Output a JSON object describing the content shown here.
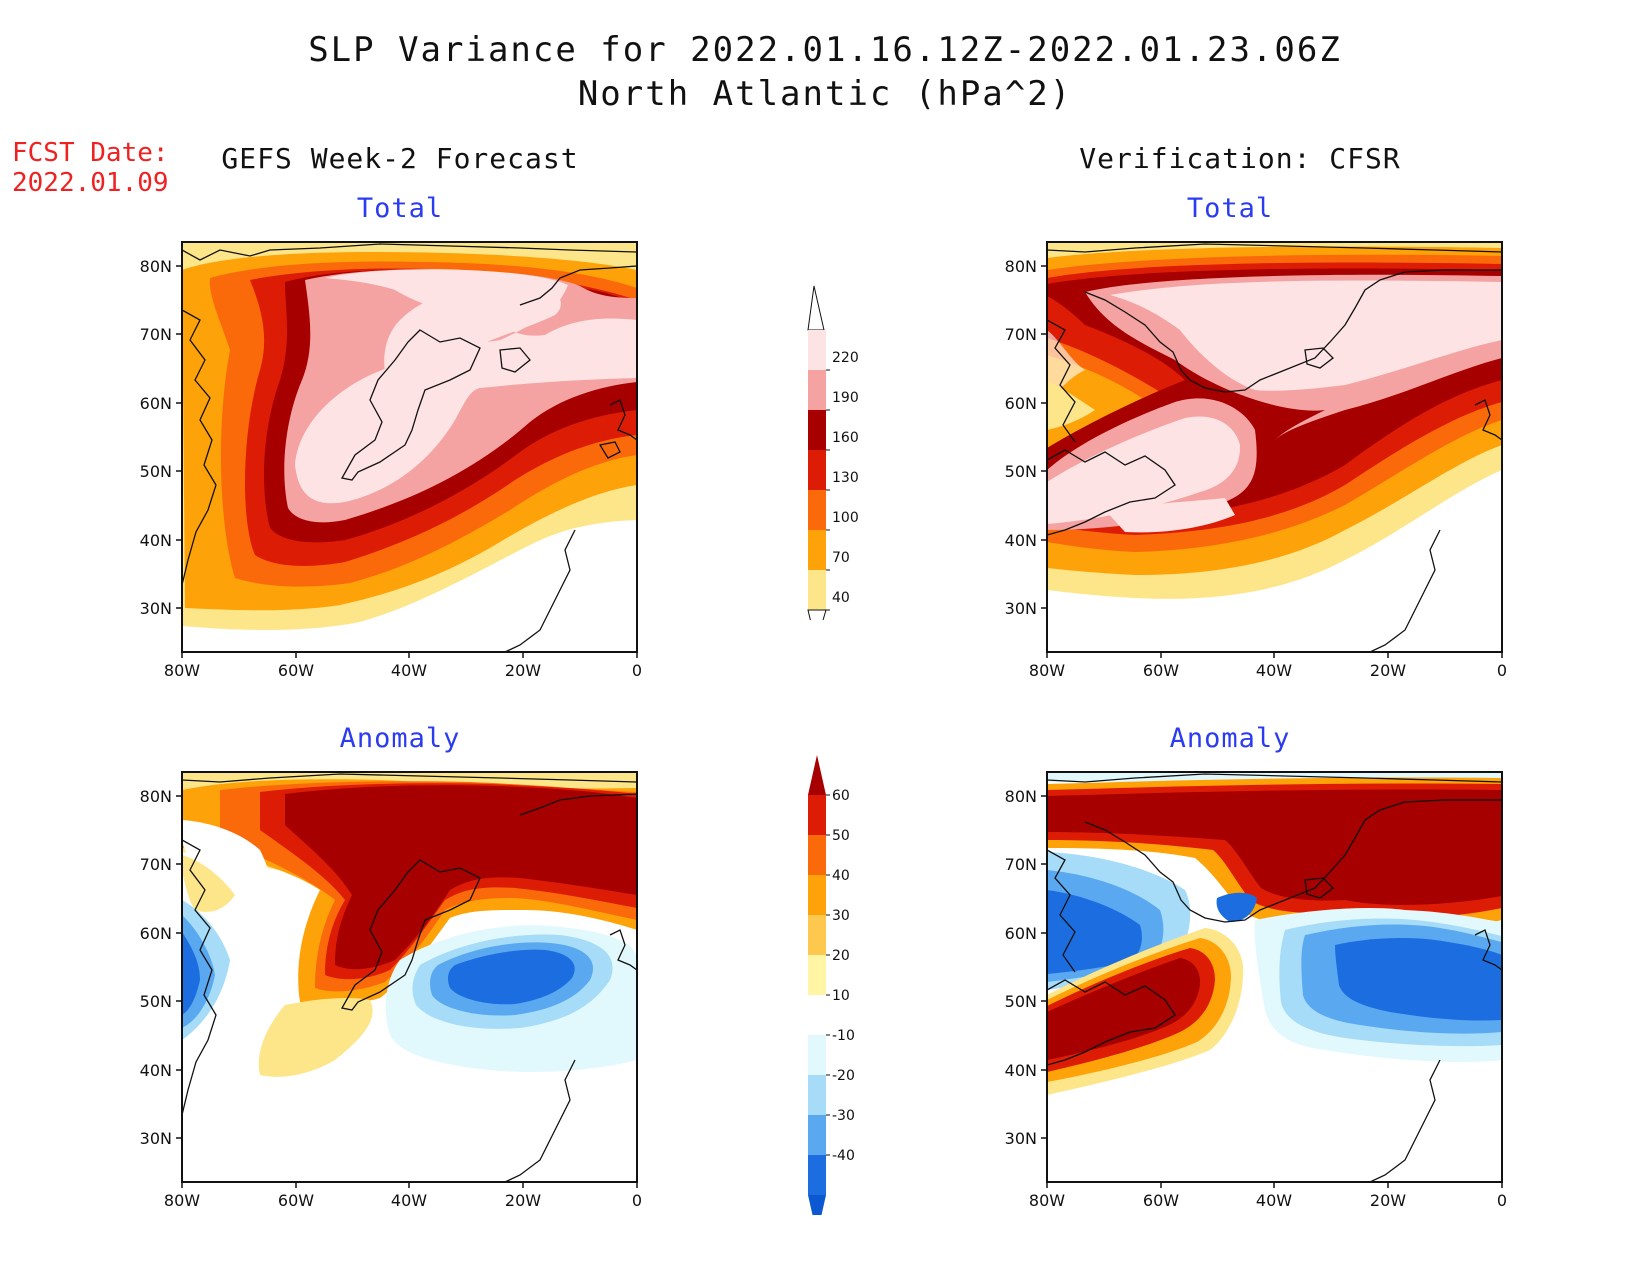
{
  "header": {
    "title_line1": "SLP Variance for 2022.01.16.12Z-2022.01.23.06Z",
    "title_line2": "North Atlantic (hPa^2)"
  },
  "fcst": {
    "label": "FCST Date:",
    "date": "2022.01.09"
  },
  "columns": {
    "left": "GEFS Week-2 Forecast",
    "right": "Verification: CFSR"
  },
  "panel_titles": {
    "total": "Total",
    "anomaly": "Anomaly"
  },
  "axes": {
    "lat_labels": [
      "80N",
      "70N",
      "60N",
      "50N",
      "40N",
      "30N"
    ],
    "lon_labels": [
      "80W",
      "60W",
      "40W",
      "20W",
      "0"
    ]
  },
  "colorbar_total": {
    "labels": [
      "220",
      "190",
      "160",
      "130",
      "100",
      "70",
      "40"
    ],
    "colors": [
      "#fde3e3",
      "#f4a2a2",
      "#a60000",
      "#dd1c05",
      "#fb6a0a",
      "#fea20a",
      "#fde68a"
    ]
  },
  "colorbar_anomaly": {
    "labels": [
      "60",
      "50",
      "40",
      "30",
      "20",
      "10",
      "-10",
      "-20",
      "-30",
      "-40"
    ],
    "colors": [
      "#a60000",
      "#dd1c05",
      "#fb6a0a",
      "#fea20a",
      "#fdc84d",
      "#fff5a5",
      "#ffffff",
      "#e1f8fd",
      "#a6dcf8",
      "#5aa9f0",
      "#1c6ee0",
      "#0b58d2"
    ]
  },
  "palette": {
    "pale_pink": "#fde3e3",
    "pink": "#f4a2a2",
    "dark_red": "#a60000",
    "red": "#dd1c05",
    "orange": "#fb6a0a",
    "light_orange": "#fea20a",
    "yellow": "#fde68a",
    "light_cyan": "#e1f8fd",
    "light_blue": "#a6dcf8",
    "mid_blue": "#5aa9f0",
    "blue": "#1c6ee0",
    "deep_blue": "#0b58d2"
  }
}
